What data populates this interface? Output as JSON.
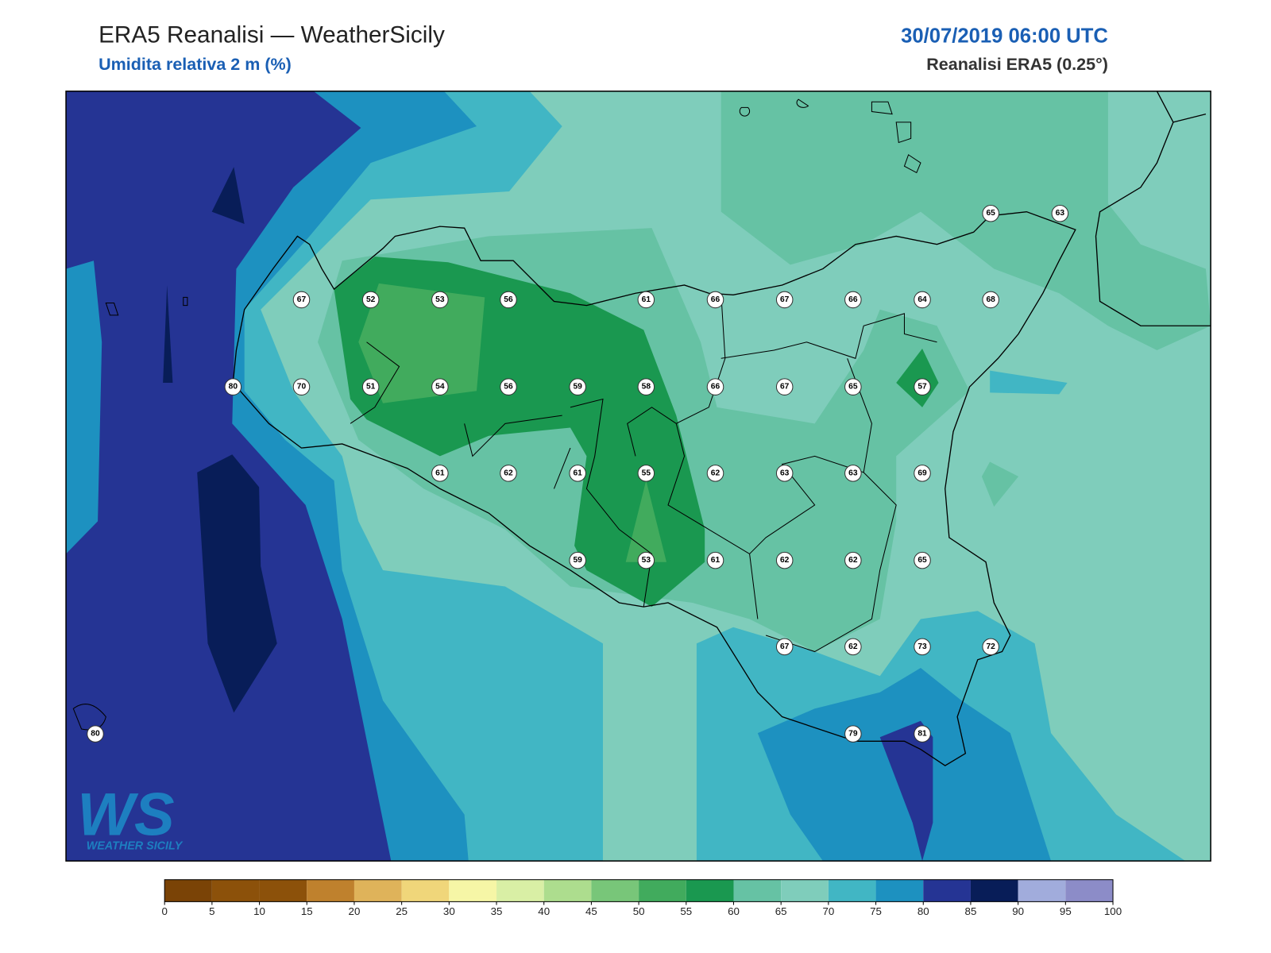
{
  "header": {
    "title": "ERA5 Reanalisi — WeatherSicily",
    "subtitle": "Umidita relativa 2 m (%)",
    "datetime": "30/07/2019 06:00 UTC",
    "source": "Reanalisi ERA5 (0.25°)"
  },
  "stations": [
    65,
    63,
    67,
    52,
    53,
    56,
    61,
    66,
    67,
    66,
    64,
    68,
    80,
    70,
    51,
    54,
    56,
    59,
    58,
    66,
    67,
    65,
    57,
    61,
    62,
    61,
    55,
    62,
    63,
    63,
    69,
    59,
    53,
    61,
    62,
    62,
    65,
    67,
    62,
    73,
    72,
    80,
    79,
    81
  ],
  "logo": {
    "mark": "WS",
    "text": "WEATHER SICILY"
  },
  "colorbar": {
    "ticks": [
      0,
      5,
      10,
      15,
      20,
      25,
      30,
      35,
      40,
      45,
      50,
      55,
      60,
      65,
      70,
      75,
      80,
      85,
      90,
      95,
      100
    ],
    "colors": [
      "#7a4306",
      "#8c510a",
      "#8c510a",
      "#bf812d",
      "#dfb35a",
      "#f0d67a",
      "#f6f6a6",
      "#d9efa5",
      "#addd8e",
      "#78c679",
      "#41ab5d",
      "#1a9850",
      "#66c2a4",
      "#7fcdbb",
      "#41b6c4",
      "#1d91c0",
      "#253494",
      "#081d58",
      "#a1acdc",
      "#8c8cc8"
    ]
  }
}
